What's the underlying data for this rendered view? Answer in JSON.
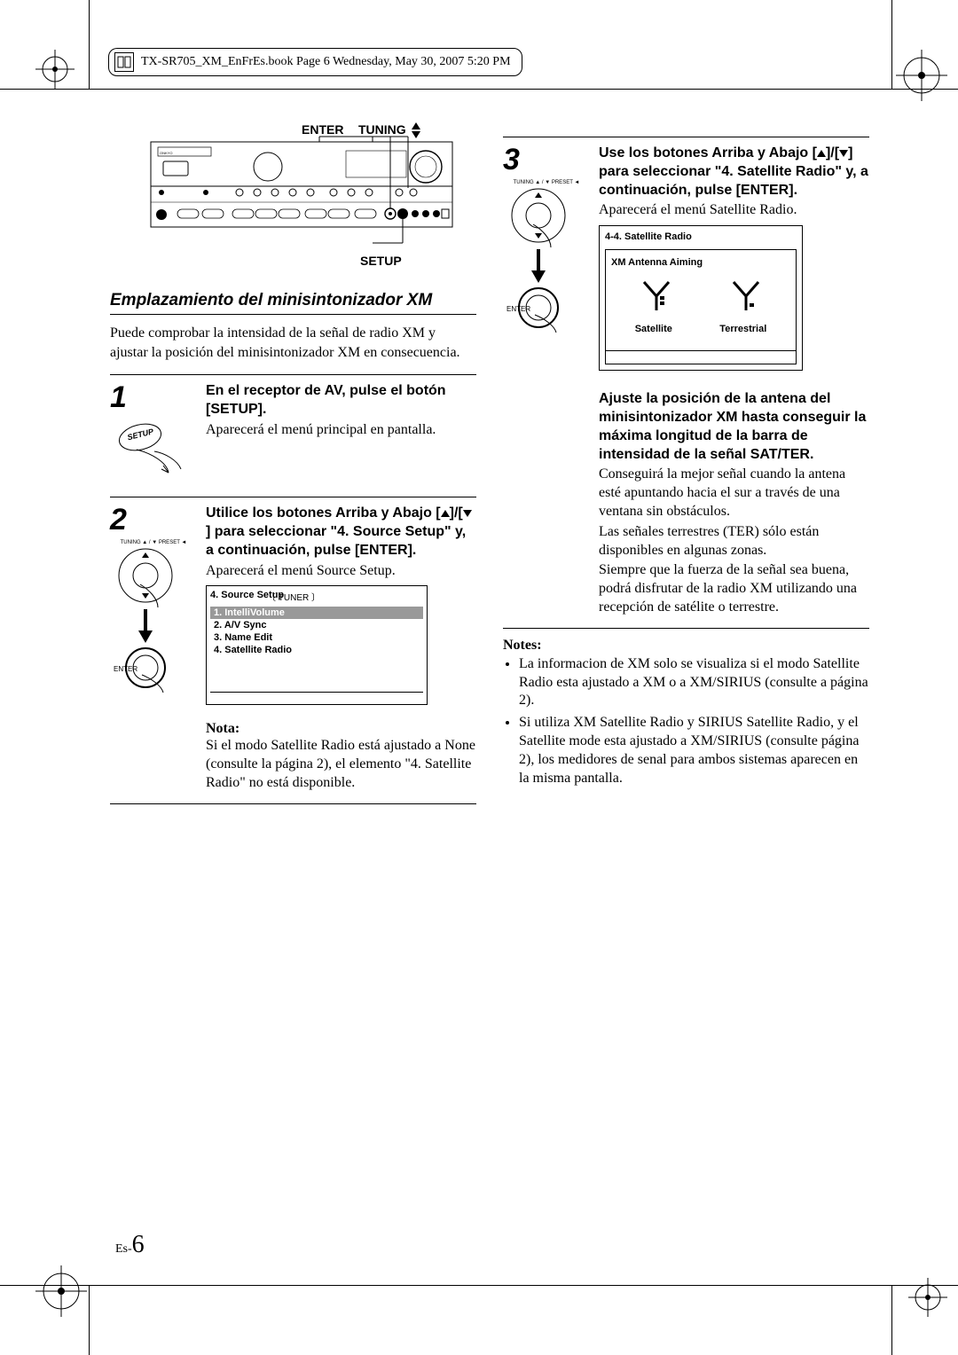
{
  "bookHeader": "TX-SR705_XM_EnFrEs.book  Page 6  Wednesday, May 30, 2007  5:20 PM",
  "labels": {
    "enter": "ENTER",
    "tuning": "TUNING",
    "setup": "SETUP"
  },
  "section": {
    "title": "Emplazamiento del minisintonizador XM",
    "intro": "Puede comprobar la intensidad de la señal de radio XM y ajustar la posición del minisintonizador XM en consecuencia."
  },
  "step1": {
    "num": "1",
    "head": "En el receptor de AV, pulse el botón [SETUP].",
    "text": "Aparecerá el menú principal en pantalla.",
    "iconText": "SETUP"
  },
  "step2": {
    "num": "2",
    "headPre": "Utilice los botones Arriba y Abajo [",
    "headMid": "]/[",
    "headPost": "] para seleccionar \"4. Source Setup\" y, a continuación, pulse [ENTER].",
    "text": "Aparecerá el menú Source Setup.",
    "menu": {
      "title": "4.   Source Setup",
      "sub": "TUNER",
      "items": [
        {
          "n": "1.",
          "t": "IntelliVolume",
          "sel": true
        },
        {
          "n": "2.",
          "t": "A/V Sync",
          "sel": false
        },
        {
          "n": "3.",
          "t": "Name Edit",
          "sel": false
        },
        {
          "n": "4.",
          "t": "Satellite Radio",
          "sel": false
        }
      ]
    },
    "notaHead": "Nota:",
    "notaText": "Si el modo Satellite Radio está ajustado a None (consulte la página 2), el elemento \"4. Satellite Radio\" no está disponible.",
    "arrowLabel": "TUNING / PRESET",
    "enterLabel": "ENTER"
  },
  "step3": {
    "num": "3",
    "headPre": "Use los botones Arriba y Abajo [",
    "headMid": "]/[",
    "headPost": "] para seleccionar \"4. Satellite Radio\" y, a continuación, pulse [ENTER].",
    "text": "Aparecerá el menú Satellite Radio.",
    "aiming": {
      "hdr": "4-4.   Satellite Radio",
      "sub": "XM Antenna Aiming",
      "leftLabel": "Satellite",
      "rightLabel": "Terrestrial"
    },
    "subHead": "Ajuste la posición de la antena del minisintonizador XM hasta conseguir la máxima longitud de la barra de intensidad de la señal SAT/TER.",
    "subText1": "Conseguirá la mejor señal cuando la antena esté apuntando hacia el sur a través de una ventana sin obstáculos.",
    "subText2": "Las señales terrestres (TER) sólo están disponibles en algunas zonas.",
    "subText3": "Siempre que la fuerza de la señal sea buena, podrá disfrutar de la radio XM utilizando una recepción de satélite o terrestre.",
    "arrowLabel": "TUNING / PRESET",
    "enterLabel": "ENTER"
  },
  "notes": {
    "head": "Notes:",
    "items": [
      "La informacion de XM solo se visualiza si el modo Satellite Radio esta ajustado a XM o a XM/SIRIUS (consulte a página 2).",
      "Si utiliza XM Satellite Radio y SIRIUS Satellite Radio, y el Satellite mode esta ajustado a XM/SIRIUS (consulte página 2), los medidores de senal para ambos sistemas aparecen en la misma pantalla."
    ]
  },
  "pageNum": {
    "prefix": "Es-",
    "num": "6"
  },
  "colors": {
    "selBg": "#999999",
    "selFg": "#ffffff",
    "line": "#000000"
  }
}
